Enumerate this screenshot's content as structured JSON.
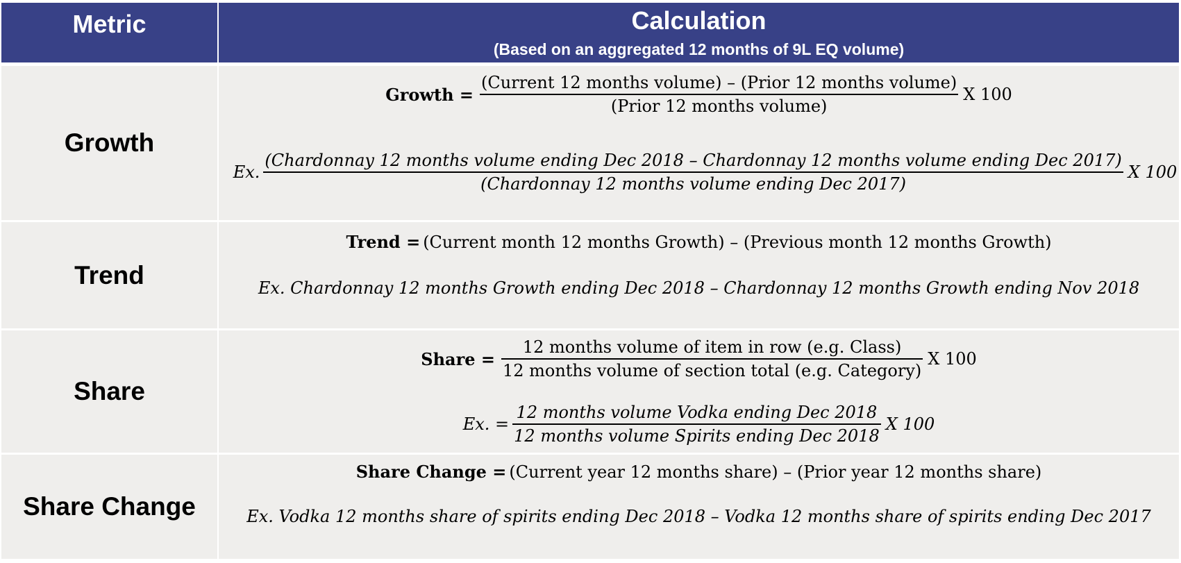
{
  "header": {
    "metric": "Metric",
    "calculation": "Calculation",
    "calculation_note": "(Based on an aggregated 12 months of 9L EQ volume)"
  },
  "rows": {
    "growth": {
      "metric": "Growth",
      "formula_label": "Growth =",
      "formula_numerator": "(Current 12 months volume) – (Prior 12 months volume)",
      "formula_denominator": "(Prior 12 months volume)",
      "formula_tail": "X 100",
      "example_prefix": "Ex.",
      "example_numerator": "(Chardonnay 12 months volume ending Dec 2018 – Chardonnay 12 months volume ending Dec 2017)",
      "example_denominator": "(Chardonnay 12 months volume ending Dec 2017)",
      "example_tail": "X 100"
    },
    "trend": {
      "metric": "Trend",
      "formula_label": "Trend =",
      "formula_body": "(Current month 12 months Growth) – (Previous month 12 months Growth)",
      "example": "Ex. Chardonnay 12 months Growth ending Dec 2018 – Chardonnay 12 months Growth ending Nov 2018"
    },
    "share": {
      "metric": "Share",
      "formula_label": "Share =",
      "formula_numerator": "12 months volume of item in row (e.g. Class)",
      "formula_denominator": "12 months volume of section total (e.g. Category)",
      "formula_tail": "X 100",
      "example_prefix": "Ex. =",
      "example_numerator": "12 months volume Vodka ending Dec 2018",
      "example_denominator": "12 months volume Spirits ending Dec 2018",
      "example_tail": "X 100"
    },
    "share_change": {
      "metric": "Share Change",
      "formula_label": "Share Change =",
      "formula_body": "(Current year 12 months share) – (Prior year 12 months share)",
      "example": "Ex.  Vodka 12 months share of spirits ending Dec 2018 – Vodka 12 months share of spirits ending Dec 2017"
    }
  },
  "colors": {
    "header_bg": "#384187",
    "cell_bg": "#efeeec",
    "border": "#ffffff"
  }
}
